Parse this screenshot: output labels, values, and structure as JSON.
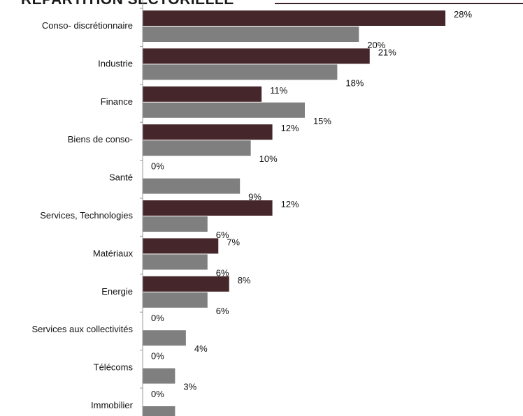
{
  "chart_data": {
    "type": "bar",
    "orientation": "horizontal",
    "title": "RÉPARTITION SECTORIELLE",
    "categories": [
      "Conso- discrétionnaire",
      "Industrie",
      "Finance",
      "Biens de conso-",
      "Santé",
      "Services, Technologies",
      "Matériaux",
      "Energie",
      "Services aux collectivités",
      "Télécoms",
      "Immobilier"
    ],
    "series": [
      {
        "color": "#45262b",
        "values": [
          28,
          21,
          11,
          12,
          0,
          12,
          7,
          8,
          0,
          0,
          0
        ]
      },
      {
        "color": "#7f7f7f",
        "values": [
          20,
          18,
          15,
          10,
          9,
          6,
          6,
          6,
          4,
          3,
          3
        ]
      }
    ],
    "value_suffix": "%",
    "xlim": [
      0,
      30
    ],
    "legend": "none",
    "grid": false
  }
}
